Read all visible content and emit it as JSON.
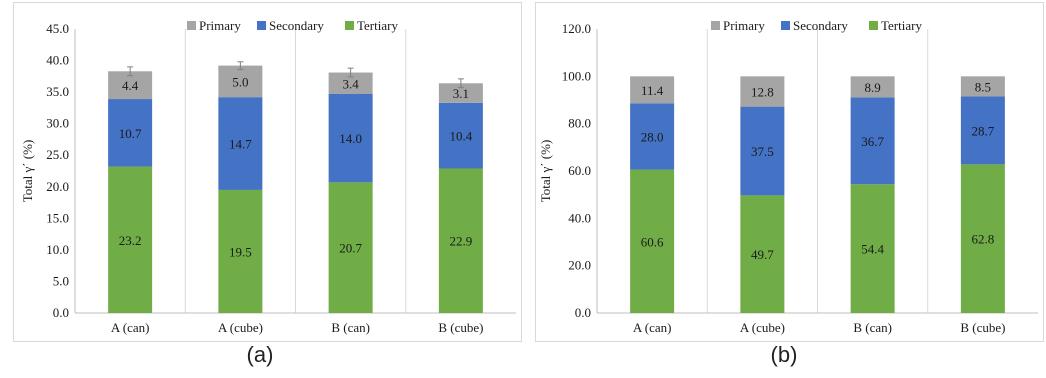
{
  "figure": {
    "captions": [
      "(a)",
      "(b)"
    ]
  },
  "colors": {
    "primary": "#a5a5a5",
    "secondary": "#4472c4",
    "tertiary": "#70ad47",
    "grid": "#d9d9d9",
    "axis": "#bfbfbf",
    "text": "#1a1a1a"
  },
  "chart_data": [
    {
      "type": "bar",
      "stacked": true,
      "categories": [
        "A (can)",
        "A (cube)",
        "B (can)",
        "B (cube)"
      ],
      "series": [
        {
          "name": "Tertiary",
          "values": [
            23.2,
            19.5,
            20.7,
            22.9
          ],
          "labels": [
            "23.2",
            "19.5",
            "20.7",
            "22.9"
          ]
        },
        {
          "name": "Secondary",
          "values": [
            10.7,
            14.7,
            14.0,
            10.4
          ],
          "labels": [
            "10.7",
            "14.7",
            "14.0",
            "10.4"
          ]
        },
        {
          "name": "Primary",
          "values": [
            4.4,
            5.0,
            3.4,
            3.1
          ],
          "labels": [
            "4.4",
            "5.0",
            "3.4",
            "3.1"
          ]
        }
      ],
      "legend": [
        "Primary",
        "Secondary",
        "Tertiary"
      ],
      "legend_position": "top",
      "error_bars": [
        0.7,
        0.6,
        0.7,
        0.7
      ],
      "ylabel": "Total γ΄ (%)",
      "ylim": [
        0,
        45
      ],
      "yticks": [
        "0.0",
        "5.0",
        "10.0",
        "15.0",
        "20.0",
        "25.0",
        "30.0",
        "35.0",
        "40.0",
        "45.0"
      ],
      "grid": "vertical",
      "caption": "(a)"
    },
    {
      "type": "bar",
      "stacked": true,
      "categories": [
        "A (can)",
        "A (cube)",
        "B (can)",
        "B (cube)"
      ],
      "series": [
        {
          "name": "Tertiary",
          "values": [
            60.6,
            49.7,
            54.4,
            62.8
          ],
          "labels": [
            "60.6",
            "49.7",
            "54.4",
            "62.8"
          ]
        },
        {
          "name": "Secondary",
          "values": [
            28.0,
            37.5,
            36.7,
            28.7
          ],
          "labels": [
            "28.0",
            "37.5",
            "36.7",
            "28.7"
          ]
        },
        {
          "name": "Primary",
          "values": [
            11.4,
            12.8,
            8.9,
            8.5
          ],
          "labels": [
            "11.4",
            "12.8",
            "8.9",
            "8.5"
          ]
        }
      ],
      "legend": [
        "Primary",
        "Secondary",
        "Tertiary"
      ],
      "legend_position": "top",
      "ylabel": "Total γ΄ (%)",
      "ylim": [
        0,
        120
      ],
      "yticks": [
        "0.0",
        "20.0",
        "40.0",
        "60.0",
        "80.0",
        "100.0",
        "120.0"
      ],
      "grid": "vertical",
      "caption": "(b)"
    }
  ]
}
